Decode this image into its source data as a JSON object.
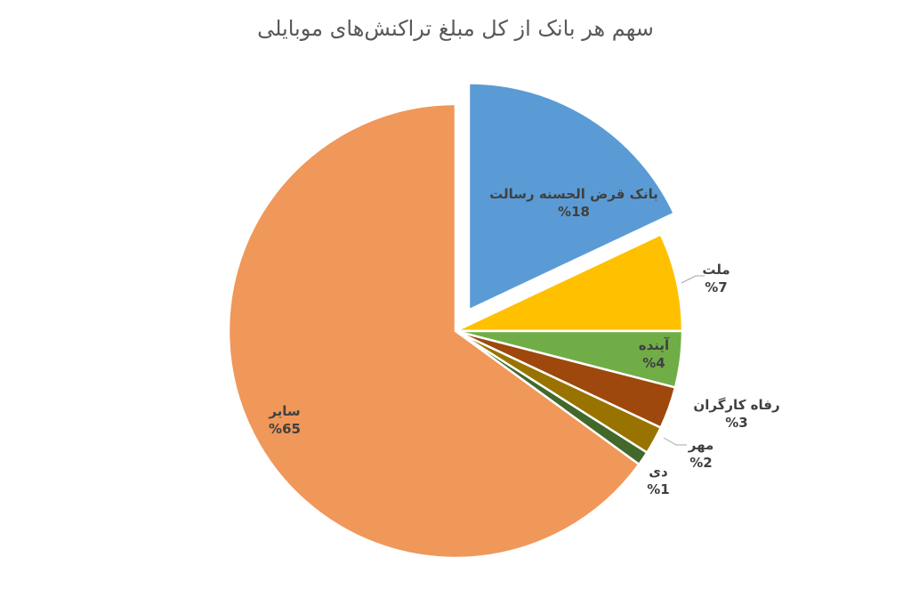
{
  "chart_data": {
    "type": "pie",
    "title": "سهم هر بانک از کل مبلغ تراکنش‌های موبایلی",
    "categories": [
      "بانک قرض الحسنه رسالت",
      "ملت",
      "آینده",
      "رفاه کارگران",
      "مهر",
      "دی",
      "سایر"
    ],
    "values": [
      18,
      7,
      4,
      3,
      2,
      1,
      65
    ],
    "value_labels": [
      "%18",
      "%7",
      "%4",
      "%3",
      "%2",
      "%1",
      "%65"
    ],
    "colors": [
      "#5b9bd5",
      "#ffc000",
      "#70ad47",
      "#9e480e",
      "#997300",
      "#43682b",
      "#f0975a"
    ]
  }
}
